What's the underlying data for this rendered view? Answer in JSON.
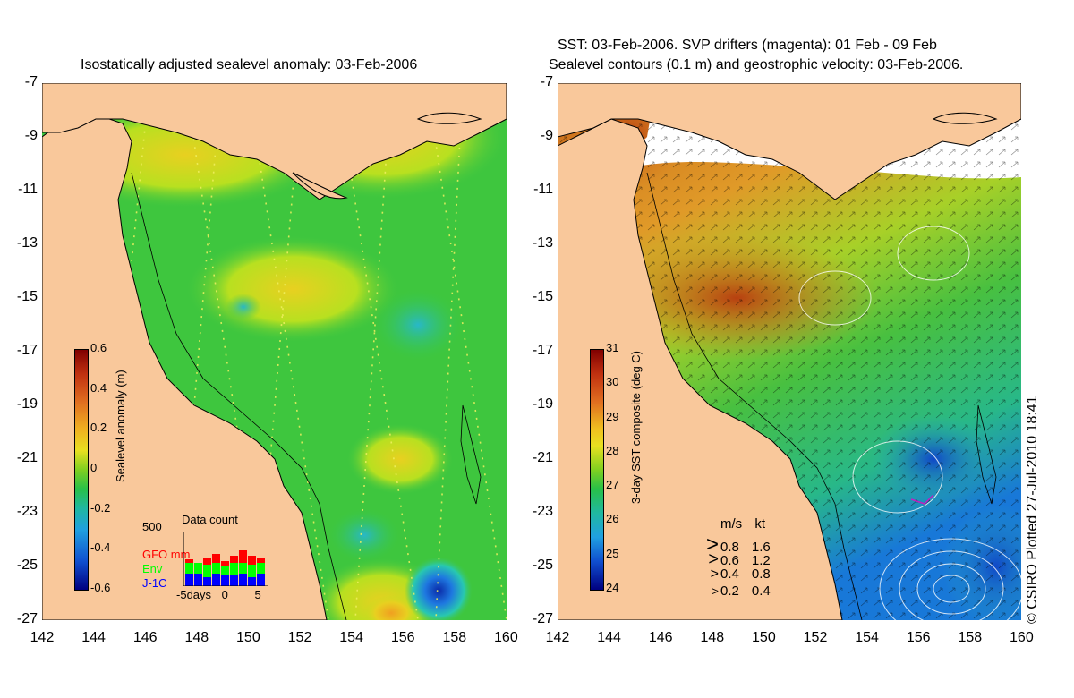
{
  "left_panel": {
    "title": "Isostatically adjusted sealevel anomaly: 03-Feb-2006",
    "colorbar": {
      "label": "Sealevel anomaly (m)",
      "ticks": [
        "0.6",
        "0.4",
        "0.2",
        "0",
        "-0.2",
        "-0.4",
        "-0.6"
      ]
    },
    "data_count": {
      "title": "Data count",
      "ymax_label": "500",
      "legend": [
        {
          "name": "GFO",
          "color": "#ff0000"
        },
        {
          "name": "mm",
          "color": "#ff0000"
        },
        {
          "name": "Env",
          "color": "#00ff00"
        },
        {
          "name": "J-1C",
          "color": "#0000ff"
        }
      ],
      "x_start": "-5",
      "x_unit": "days",
      "x_mid": "0",
      "x_end": "5"
    }
  },
  "right_panel": {
    "title_line1": "SST: 03-Feb-2006. SVP drifters (magenta): 01 Feb - 09 Feb",
    "title_line2": "Sealevel contours (0.1 m) and geostrophic velocity: 03-Feb-2006.",
    "colorbar": {
      "label": "3-day SST composite (deg C)",
      "ticks": [
        "31",
        "30",
        "29",
        "28",
        "27",
        "26",
        "25",
        "24"
      ]
    },
    "velocity_legend": {
      "header_ms": "m/s",
      "header_kt": "kt",
      "rows": [
        {
          "ms": "0.8",
          "kt": "1.6"
        },
        {
          "ms": "0.6",
          "kt": "1.2"
        },
        {
          "ms": "0.4",
          "kt": "0.8"
        },
        {
          "ms": "0.2",
          "kt": "0.4"
        }
      ]
    },
    "credit": "© CSIRO Plotted 27-Jul-2010 18:41"
  },
  "axes": {
    "y_ticks": [
      "-7",
      "-9",
      "-11",
      "-13",
      "-15",
      "-17",
      "-19",
      "-21",
      "-23",
      "-25",
      "-27"
    ],
    "x_ticks": [
      "142",
      "144",
      "146",
      "148",
      "150",
      "152",
      "154",
      "156",
      "158",
      "160"
    ]
  },
  "colors": {
    "land": "#f9c89b",
    "sea_green": "#35c435",
    "warm": "#d9701e",
    "cold": "#1a5ad0"
  }
}
